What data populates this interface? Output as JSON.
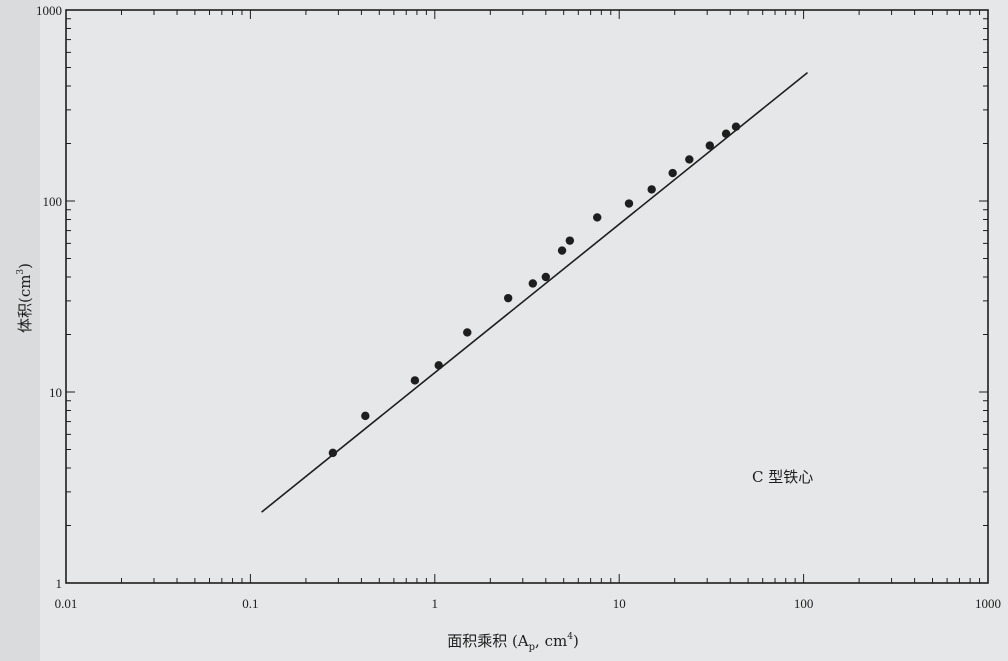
{
  "chart_data": {
    "type": "scatter",
    "x_scale": "log",
    "y_scale": "log",
    "xlim": [
      0.01,
      1000
    ],
    "ylim": [
      1,
      1000
    ],
    "x_tick_labels": [
      {
        "value": 0.01,
        "label": "0.01"
      },
      {
        "value": 0.1,
        "label": "0.1"
      },
      {
        "value": 1,
        "label": "1"
      },
      {
        "value": 10,
        "label": "10"
      },
      {
        "value": 100,
        "label": "100"
      },
      {
        "value": 1000,
        "label": "1000"
      }
    ],
    "y_tick_labels": [
      {
        "value": 1,
        "label": "1"
      },
      {
        "value": 10,
        "label": "10"
      },
      {
        "value": 100,
        "label": "100"
      },
      {
        "value": 1000,
        "label": "1000"
      }
    ],
    "xlabel": "面积乘积 (A",
    "xlabel_subscript": "p",
    "xlabel_tail": ", cm",
    "xlabel_superscript": "4",
    "xlabel_close": ")",
    "ylabel": "体积(cm",
    "ylabel_superscript": "3",
    "ylabel_close": ")",
    "annotation": "C 型铁心",
    "grid": false,
    "points": [
      {
        "x": 0.28,
        "y": 4.8
      },
      {
        "x": 0.42,
        "y": 7.5
      },
      {
        "x": 0.78,
        "y": 11.5
      },
      {
        "x": 1.05,
        "y": 13.8
      },
      {
        "x": 1.5,
        "y": 20.5
      },
      {
        "x": 2.5,
        "y": 31
      },
      {
        "x": 3.4,
        "y": 37
      },
      {
        "x": 4.0,
        "y": 40
      },
      {
        "x": 4.9,
        "y": 55
      },
      {
        "x": 5.4,
        "y": 62
      },
      {
        "x": 7.6,
        "y": 82
      },
      {
        "x": 11.3,
        "y": 97
      },
      {
        "x": 15,
        "y": 115
      },
      {
        "x": 19.5,
        "y": 140
      },
      {
        "x": 24,
        "y": 165
      },
      {
        "x": 31,
        "y": 195
      },
      {
        "x": 38,
        "y": 225
      },
      {
        "x": 43,
        "y": 245
      }
    ],
    "fit_line": {
      "x": [
        0.115,
        105
      ],
      "y": [
        2.35,
        470
      ]
    },
    "colors": {
      "ink": "#1e1e1e",
      "paper": "#e6e7e8",
      "border": "#d9dbdc"
    }
  }
}
